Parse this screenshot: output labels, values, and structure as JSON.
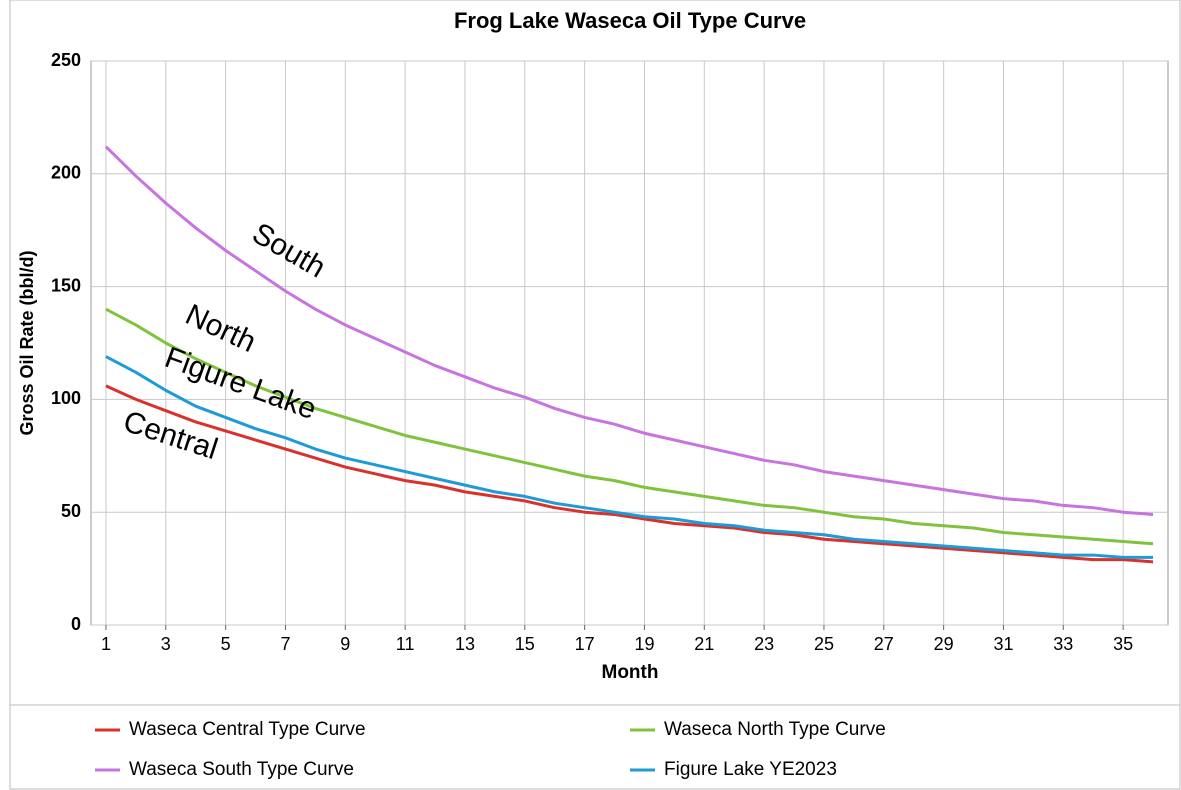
{
  "chart_data": {
    "type": "line",
    "title": "Frog Lake Waseca Oil Type Curve",
    "x_label": "Month",
    "y_label": "Gross Oil Rate (bbl/d)",
    "x": [
      1,
      2,
      3,
      4,
      5,
      6,
      7,
      8,
      9,
      10,
      11,
      12,
      13,
      14,
      15,
      16,
      17,
      18,
      19,
      20,
      21,
      22,
      23,
      24,
      25,
      26,
      27,
      28,
      29,
      30,
      31,
      32,
      33,
      34,
      35,
      36
    ],
    "xlim": [
      0.5,
      36.5
    ],
    "xticks": [
      1,
      3,
      5,
      7,
      9,
      11,
      13,
      15,
      17,
      19,
      21,
      23,
      25,
      27,
      29,
      31,
      33,
      35
    ],
    "ylim": [
      0,
      250
    ],
    "yticks": [
      0,
      50,
      100,
      150,
      200,
      250
    ],
    "grid": true,
    "legend": "bottom",
    "series": [
      {
        "name": "Waseca Central Type Curve",
        "color": "#d9312b",
        "values": [
          106,
          100,
          95,
          90,
          86,
          82,
          78,
          74,
          70,
          67,
          64,
          62,
          59,
          57,
          55,
          52,
          50,
          49,
          47,
          45,
          44,
          43,
          41,
          40,
          38,
          37,
          36,
          35,
          34,
          33,
          32,
          31,
          30,
          29,
          29,
          28
        ]
      },
      {
        "name": "Waseca North Type Curve",
        "color": "#7fc33c",
        "values": [
          140,
          133,
          125,
          118,
          112,
          106,
          101,
          96,
          92,
          88,
          84,
          81,
          78,
          75,
          72,
          69,
          66,
          64,
          61,
          59,
          57,
          55,
          53,
          52,
          50,
          48,
          47,
          45,
          44,
          43,
          41,
          40,
          39,
          38,
          37,
          36
        ]
      },
      {
        "name": "Waseca South Type Curve",
        "color": "#c873e0",
        "values": [
          212,
          199,
          187,
          176,
          166,
          157,
          148,
          140,
          133,
          127,
          121,
          115,
          110,
          105,
          101,
          96,
          92,
          89,
          85,
          82,
          79,
          76,
          73,
          71,
          68,
          66,
          64,
          62,
          60,
          58,
          56,
          55,
          53,
          52,
          50,
          49
        ]
      },
      {
        "name": "Figure Lake YE2023",
        "color": "#1e9ad6",
        "values": [
          119,
          112,
          104,
          97,
          92,
          87,
          83,
          78,
          74,
          71,
          68,
          65,
          62,
          59,
          57,
          54,
          52,
          50,
          48,
          47,
          45,
          44,
          42,
          41,
          40,
          38,
          37,
          36,
          35,
          34,
          33,
          32,
          31,
          31,
          30,
          30
        ]
      }
    ],
    "annotations": [
      "South",
      "North",
      "Figure Lake",
      "Central"
    ]
  }
}
